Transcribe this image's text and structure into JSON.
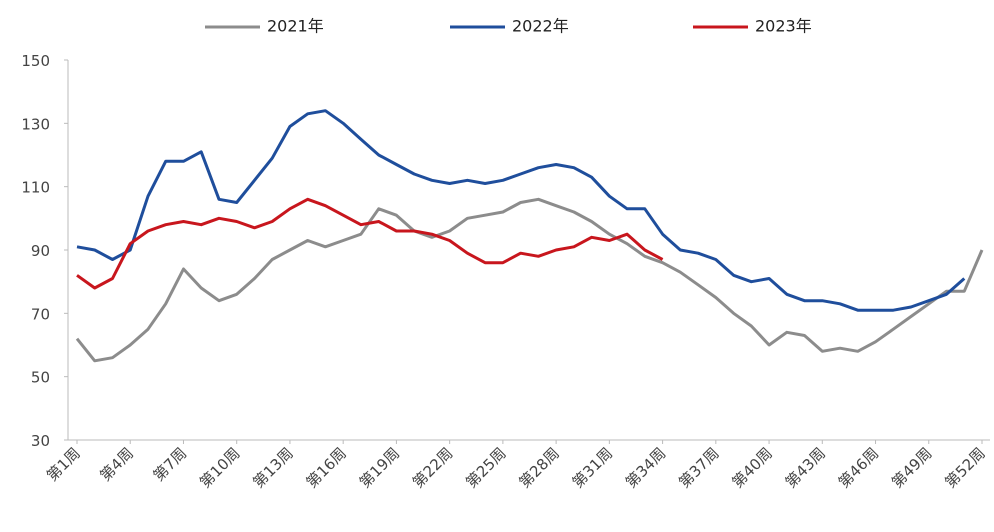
{
  "chart_data": {
    "type": "line",
    "categories": [
      "第1周",
      null,
      null,
      "第4周",
      null,
      null,
      "第7周",
      null,
      null,
      "第10周",
      null,
      null,
      "第13周",
      null,
      null,
      "第16周",
      null,
      null,
      "第19周",
      null,
      null,
      "第22周",
      null,
      null,
      "第25周",
      null,
      null,
      "第28周",
      null,
      null,
      "第31周",
      null,
      null,
      "第34周",
      null,
      null,
      "第37周",
      null,
      null,
      "第40周",
      null,
      null,
      "第43周",
      null,
      null,
      "第46周",
      null,
      null,
      "第49周",
      null,
      null,
      "第52周"
    ],
    "series": [
      {
        "name": "2021年",
        "color": "#8c8c8c",
        "values": [
          62,
          55,
          56,
          60,
          65,
          73,
          84,
          78,
          74,
          76,
          81,
          87,
          90,
          93,
          91,
          93,
          95,
          103,
          101,
          96,
          94,
          96,
          100,
          101,
          102,
          105,
          106,
          104,
          102,
          99,
          95,
          92,
          88,
          86,
          83,
          79,
          75,
          70,
          66,
          60,
          64,
          63,
          58,
          59,
          58,
          61,
          65,
          69,
          73,
          77,
          77,
          90
        ]
      },
      {
        "name": "2022年",
        "color": "#1f4e9c",
        "values": [
          91,
          90,
          87,
          90,
          107,
          118,
          118,
          121,
          106,
          105,
          112,
          119,
          129,
          133,
          134,
          130,
          125,
          120,
          117,
          114,
          112,
          111,
          112,
          111,
          112,
          114,
          116,
          117,
          116,
          113,
          107,
          103,
          103,
          95,
          90,
          89,
          87,
          82,
          80,
          81,
          76,
          74,
          74,
          73,
          71,
          71,
          71,
          72,
          74,
          76,
          81,
          null
        ]
      },
      {
        "name": "2023年",
        "color": "#c8161d",
        "values": [
          82,
          78,
          81,
          92,
          96,
          98,
          99,
          98,
          100,
          99,
          97,
          99,
          103,
          106,
          104,
          101,
          98,
          99,
          96,
          96,
          95,
          93,
          89,
          86,
          86,
          89,
          88,
          90,
          91,
          94,
          93,
          95,
          90,
          87,
          null,
          null,
          null,
          null,
          null,
          null,
          null,
          null,
          null,
          null,
          null,
          null,
          null,
          null,
          null,
          null,
          null,
          null
        ]
      }
    ],
    "ylim": [
      30,
      150
    ],
    "yticks": [
      30,
      50,
      70,
      90,
      110,
      130,
      150
    ],
    "grid": false,
    "legend": "top"
  }
}
